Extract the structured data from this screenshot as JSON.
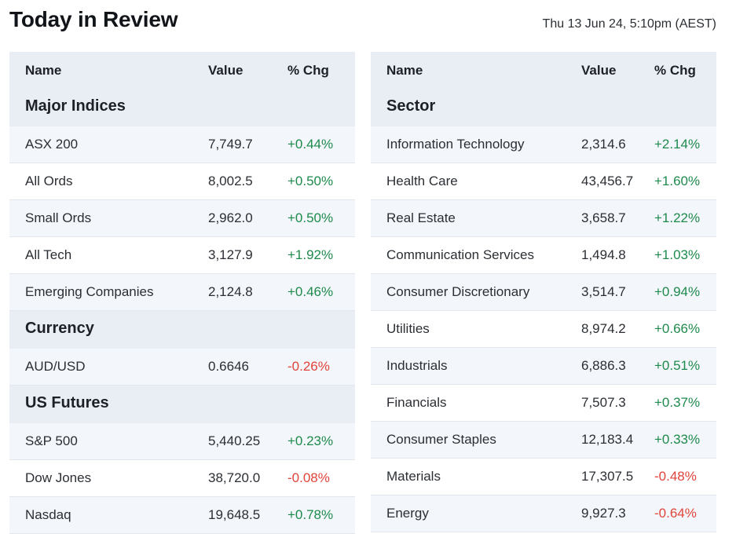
{
  "header": {
    "title": "Today in Review",
    "timestamp": "Thu 13 Jun 24, 5:10pm (AEST)"
  },
  "columns": {
    "name": "Name",
    "value": "Value",
    "chg": "% Chg"
  },
  "left": {
    "major_indices": {
      "title": "Major Indices",
      "rows": [
        {
          "name": "ASX 200",
          "value": "7,749.7",
          "chg": "+0.44%"
        },
        {
          "name": "All Ords",
          "value": "8,002.5",
          "chg": "+0.50%"
        },
        {
          "name": "Small Ords",
          "value": "2,962.0",
          "chg": "+0.50%"
        },
        {
          "name": "All Tech",
          "value": "3,127.9",
          "chg": "+1.92%"
        },
        {
          "name": "Emerging Companies",
          "value": "2,124.8",
          "chg": "+0.46%"
        }
      ]
    },
    "currency": {
      "title": "Currency",
      "rows": [
        {
          "name": "AUD/USD",
          "value": "0.6646",
          "chg": "-0.26%"
        }
      ]
    },
    "us_futures": {
      "title": "US Futures",
      "rows": [
        {
          "name": "S&P 500",
          "value": "5,440.25",
          "chg": "+0.23%"
        },
        {
          "name": "Dow Jones",
          "value": "38,720.0",
          "chg": "-0.08%"
        },
        {
          "name": "Nasdaq",
          "value": "19,648.5",
          "chg": "+0.78%"
        }
      ]
    }
  },
  "right": {
    "sector": {
      "title": "Sector",
      "rows": [
        {
          "name": "Information Technology",
          "value": "2,314.6",
          "chg": "+2.14%"
        },
        {
          "name": "Health Care",
          "value": "43,456.7",
          "chg": "+1.60%"
        },
        {
          "name": "Real Estate",
          "value": "3,658.7",
          "chg": "+1.22%"
        },
        {
          "name": "Communication Services",
          "value": "1,494.8",
          "chg": "+1.03%"
        },
        {
          "name": "Consumer Discretionary",
          "value": "3,514.7",
          "chg": "+0.94%"
        },
        {
          "name": "Utilities",
          "value": "8,974.2",
          "chg": "+0.66%"
        },
        {
          "name": "Industrials",
          "value": "6,886.3",
          "chg": "+0.51%"
        },
        {
          "name": "Financials",
          "value": "7,507.3",
          "chg": "+0.37%"
        },
        {
          "name": "Consumer Staples",
          "value": "12,183.4",
          "chg": "+0.33%"
        },
        {
          "name": "Materials",
          "value": "17,307.5",
          "chg": "-0.48%"
        },
        {
          "name": "Energy",
          "value": "9,927.3",
          "chg": "-0.64%"
        }
      ]
    }
  },
  "colors": {
    "positive": "#1e8a4c",
    "negative": "#e0443a",
    "header_bg": "#e9eef5",
    "shade_bg": "#f3f6fa"
  }
}
